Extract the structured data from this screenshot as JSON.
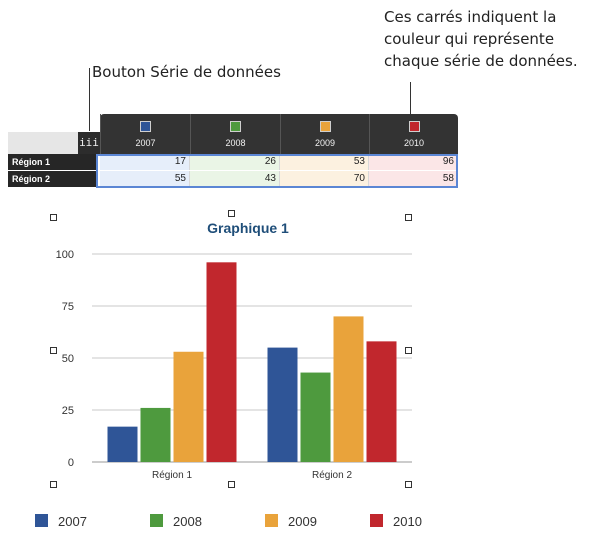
{
  "callouts": {
    "series_button": "Bouton Série de données",
    "colors_lines": [
      "Ces carrés indiquent la",
      "couleur qui représente",
      "chaque série de données."
    ]
  },
  "editor": {
    "series_button_glyph": "iii",
    "columns": [
      {
        "label": "2007",
        "color": "#2f5597"
      },
      {
        "label": "2008",
        "color": "#4e9a3e"
      },
      {
        "label": "2009",
        "color": "#e9a33b"
      },
      {
        "label": "2010",
        "color": "#c1272d"
      }
    ],
    "rows": [
      {
        "label": "Région 1",
        "values": [
          "17",
          "26",
          "53",
          "96"
        ]
      },
      {
        "label": "Région 2",
        "values": [
          "55",
          "43",
          "70",
          "58"
        ]
      }
    ]
  },
  "chart_data": {
    "type": "bar",
    "title": "Graphique 1",
    "categories": [
      "Région 1",
      "Région 2"
    ],
    "series": [
      {
        "name": "2007",
        "values": [
          17,
          55
        ],
        "color": "#2f5597"
      },
      {
        "name": "2008",
        "values": [
          26,
          43
        ],
        "color": "#4e9a3e"
      },
      {
        "name": "2009",
        "values": [
          53,
          70
        ],
        "color": "#e9a33b"
      },
      {
        "name": "2010",
        "values": [
          96,
          58
        ],
        "color": "#c1272d"
      }
    ],
    "yticks": [
      "0",
      "25",
      "50",
      "75",
      "100"
    ],
    "ylim": [
      0,
      100
    ],
    "grid": true,
    "legend_placement": "bottom"
  }
}
